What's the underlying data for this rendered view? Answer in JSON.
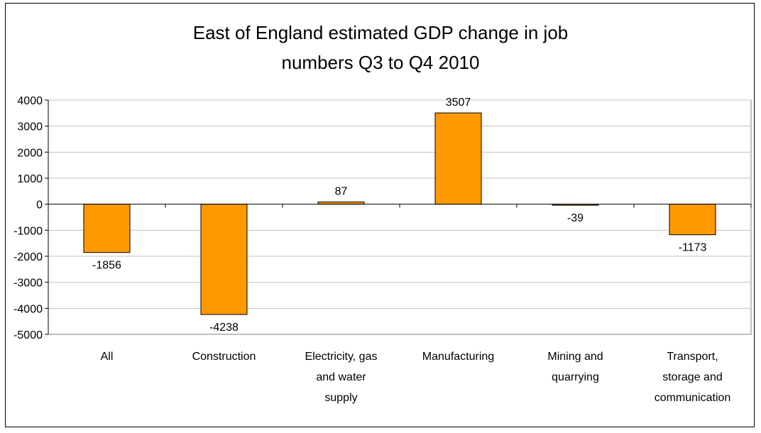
{
  "chart_data": {
    "type": "bar",
    "title_lines": [
      "East of England estimated GDP change in job",
      "numbers Q3 to Q4 2010"
    ],
    "categories": [
      [
        "All"
      ],
      [
        "Construction"
      ],
      [
        "Electricity, gas",
        "and water",
        "supply"
      ],
      [
        "Manufacturing"
      ],
      [
        "Mining and",
        "quarrying"
      ],
      [
        "Transport,",
        "storage and",
        "communication"
      ]
    ],
    "values": [
      -1856,
      -4238,
      87,
      3507,
      -39,
      -1173
    ],
    "data_labels": [
      "-1856",
      "-4238",
      "87",
      "3507",
      "-39",
      "-1173"
    ],
    "ylim": [
      -5000,
      4000
    ],
    "yticks": [
      4000,
      3000,
      2000,
      1000,
      0,
      -1000,
      -2000,
      -3000,
      -4000,
      -5000
    ],
    "ytick_labels": [
      "4000",
      "3000",
      "2000",
      "1000",
      "0",
      "-1000",
      "-2000",
      "-3000",
      "-4000",
      "-5000"
    ],
    "grid": true,
    "legend": "none",
    "bar_color": "#FF9900",
    "bar_edge_color": "#000000",
    "plot_background": "#FFFFFF",
    "grid_color": "#C0C0C0"
  }
}
